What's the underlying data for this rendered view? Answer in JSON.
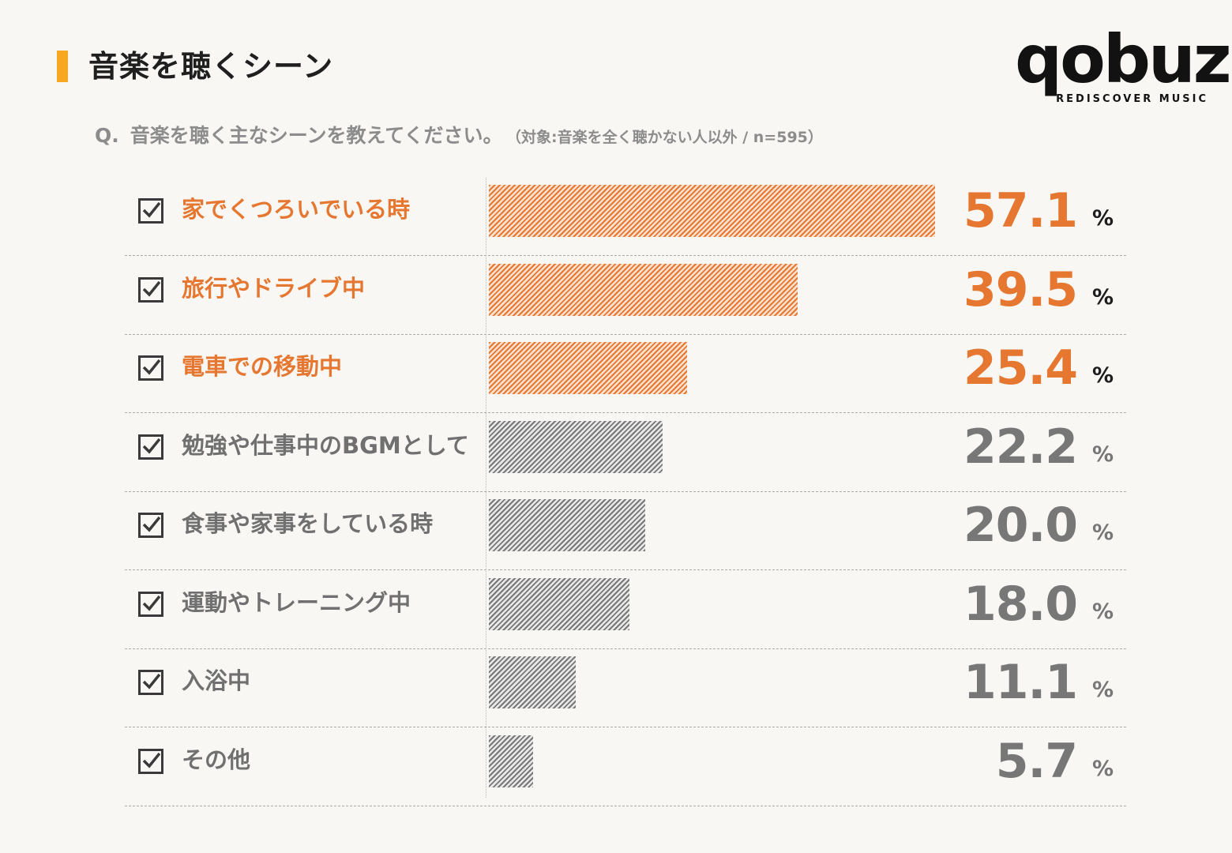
{
  "header": {
    "title": "音楽を聴くシーン",
    "question_mark": "Q.",
    "question": "音楽を聴く主なシーンを教えてください。",
    "question_note": "（対象:音楽を全く聴かない人以外 / n=595）"
  },
  "brand": {
    "name": "qobuz",
    "tagline": "REDISCOVER MUSIC"
  },
  "colors": {
    "highlight": "#e57730",
    "normal": "#777777",
    "title_accent": "#f7a823"
  },
  "chart_data": {
    "type": "bar",
    "orientation": "horizontal",
    "title": "音楽を聴くシーン",
    "unit": "%",
    "xlim": [
      0,
      70
    ],
    "categories": [
      "家でくつろいでいる時",
      "旅行やドライブ中",
      "電車での移動中",
      "勉強や仕事中のBGMとして",
      "食事や家事をしている時",
      "運動やトレーニング中",
      "入浴中",
      "その他"
    ],
    "values": [
      57.1,
      39.5,
      25.4,
      22.2,
      20.0,
      18.0,
      11.1,
      5.7
    ],
    "value_labels": [
      "57.1",
      "39.5",
      "25.4",
      "22.2",
      "20.0",
      "18.0",
      "11.1",
      "5.7"
    ],
    "highlighted": [
      true,
      true,
      true,
      false,
      false,
      false,
      false,
      false
    ]
  }
}
